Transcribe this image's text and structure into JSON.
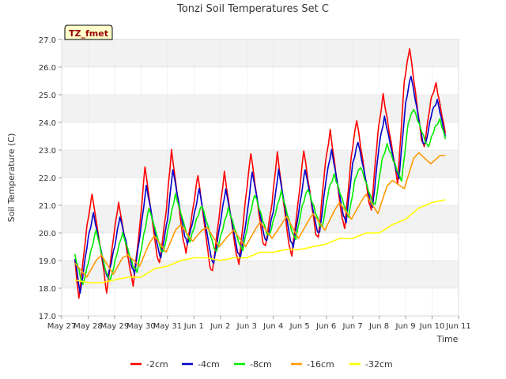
{
  "chart_data": {
    "type": "line",
    "title": "Tonzi Soil Temperatures Set C",
    "xlabel": "Time",
    "ylabel": "Soil Temperature (C)",
    "badge": "TZ_fmet",
    "xlim": [
      0,
      15
    ],
    "ylim": [
      17.0,
      27.0
    ],
    "x_ticks": [
      {
        "pos": 0,
        "label": "May 27"
      },
      {
        "pos": 1,
        "label": "May 28"
      },
      {
        "pos": 2,
        "label": "May 29"
      },
      {
        "pos": 3,
        "label": "May 30"
      },
      {
        "pos": 4,
        "label": "May 31"
      },
      {
        "pos": 5,
        "label": "Jun 1"
      },
      {
        "pos": 6,
        "label": "Jun 2"
      },
      {
        "pos": 7,
        "label": "Jun 3"
      },
      {
        "pos": 8,
        "label": "Jun 4"
      },
      {
        "pos": 9,
        "label": "Jun 5"
      },
      {
        "pos": 10,
        "label": "Jun 6"
      },
      {
        "pos": 11,
        "label": "Jun 7"
      },
      {
        "pos": 12,
        "label": "Jun 8"
      },
      {
        "pos": 13,
        "label": "Jun 9"
      },
      {
        "pos": 14,
        "label": "Jun 10"
      },
      {
        "pos": 15,
        "label": "Jun 11"
      }
    ],
    "y_ticks": [
      "17.0",
      "18.0",
      "19.0",
      "20.0",
      "21.0",
      "22.0",
      "23.0",
      "24.0",
      "25.0",
      "26.0",
      "27.0"
    ],
    "legend_position": "bottom-center",
    "x_units": "days since May 27 00:00",
    "series": [
      {
        "name": "-2cm",
        "color": "#ff0000",
        "points": [
          [
            0.5,
            19.0
          ],
          [
            0.65,
            17.6
          ],
          [
            0.95,
            20.2
          ],
          [
            1.15,
            21.4
          ],
          [
            1.6,
            18.6
          ],
          [
            1.7,
            17.8
          ],
          [
            1.95,
            19.8
          ],
          [
            2.15,
            21.1
          ],
          [
            2.6,
            18.6
          ],
          [
            2.7,
            18.1
          ],
          [
            2.95,
            20.2
          ],
          [
            3.15,
            22.4
          ],
          [
            3.6,
            19.2
          ],
          [
            3.7,
            18.9
          ],
          [
            3.95,
            20.8
          ],
          [
            4.15,
            23.0
          ],
          [
            4.6,
            19.7
          ],
          [
            4.7,
            19.3
          ],
          [
            4.95,
            20.8
          ],
          [
            5.15,
            22.1
          ],
          [
            5.6,
            18.8
          ],
          [
            5.7,
            18.6
          ],
          [
            5.95,
            20.6
          ],
          [
            6.15,
            22.2
          ],
          [
            6.6,
            19.2
          ],
          [
            6.7,
            18.9
          ],
          [
            6.95,
            21.2
          ],
          [
            7.15,
            22.9
          ],
          [
            7.6,
            19.7
          ],
          [
            7.7,
            19.5
          ],
          [
            7.95,
            21.1
          ],
          [
            8.15,
            22.9
          ],
          [
            8.6,
            19.5
          ],
          [
            8.7,
            19.2
          ],
          [
            8.95,
            21.2
          ],
          [
            9.15,
            23.0
          ],
          [
            9.6,
            20.0
          ],
          [
            9.7,
            19.8
          ],
          [
            9.95,
            22.4
          ],
          [
            10.15,
            23.7
          ],
          [
            10.6,
            20.5
          ],
          [
            10.7,
            20.2
          ],
          [
            10.95,
            22.8
          ],
          [
            11.15,
            24.1
          ],
          [
            11.6,
            21.2
          ],
          [
            11.7,
            20.8
          ],
          [
            11.95,
            23.6
          ],
          [
            12.15,
            25.0
          ],
          [
            12.6,
            22.4
          ],
          [
            12.7,
            21.8
          ],
          [
            12.95,
            25.5
          ],
          [
            13.15,
            26.7
          ],
          [
            13.6,
            23.4
          ],
          [
            13.7,
            23.1
          ],
          [
            13.95,
            24.8
          ],
          [
            14.15,
            25.4
          ],
          [
            14.5,
            23.6
          ]
        ]
      },
      {
        "name": "-4cm",
        "color": "#0000cc",
        "points": [
          [
            0.5,
            19.1
          ],
          [
            0.7,
            17.8
          ],
          [
            1.0,
            19.8
          ],
          [
            1.2,
            20.7
          ],
          [
            1.65,
            18.6
          ],
          [
            1.75,
            18.4
          ],
          [
            2.0,
            19.5
          ],
          [
            2.2,
            20.6
          ],
          [
            2.65,
            18.8
          ],
          [
            2.75,
            18.5
          ],
          [
            3.0,
            20.2
          ],
          [
            3.2,
            21.7
          ],
          [
            3.65,
            19.4
          ],
          [
            3.75,
            19.1
          ],
          [
            4.0,
            20.5
          ],
          [
            4.2,
            22.3
          ],
          [
            4.65,
            19.9
          ],
          [
            4.75,
            19.6
          ],
          [
            5.0,
            20.6
          ],
          [
            5.2,
            21.6
          ],
          [
            5.65,
            19.1
          ],
          [
            5.75,
            18.9
          ],
          [
            6.0,
            20.4
          ],
          [
            6.2,
            21.6
          ],
          [
            6.65,
            19.3
          ],
          [
            6.75,
            19.1
          ],
          [
            7.0,
            20.6
          ],
          [
            7.2,
            22.2
          ],
          [
            7.65,
            19.9
          ],
          [
            7.75,
            19.7
          ],
          [
            8.0,
            20.8
          ],
          [
            8.2,
            22.3
          ],
          [
            8.65,
            19.7
          ],
          [
            8.75,
            19.5
          ],
          [
            9.0,
            21.0
          ],
          [
            9.2,
            22.3
          ],
          [
            9.65,
            20.1
          ],
          [
            9.75,
            20.0
          ],
          [
            10.0,
            22.0
          ],
          [
            10.2,
            23.0
          ],
          [
            10.65,
            20.6
          ],
          [
            10.75,
            20.4
          ],
          [
            11.0,
            22.5
          ],
          [
            11.2,
            23.3
          ],
          [
            11.65,
            21.2
          ],
          [
            11.75,
            20.9
          ],
          [
            12.0,
            23.2
          ],
          [
            12.2,
            24.2
          ],
          [
            12.65,
            22.2
          ],
          [
            12.75,
            22.0
          ],
          [
            13.0,
            24.7
          ],
          [
            13.2,
            25.7
          ],
          [
            13.65,
            23.3
          ],
          [
            13.75,
            23.2
          ],
          [
            14.0,
            24.4
          ],
          [
            14.2,
            24.8
          ],
          [
            14.5,
            23.5
          ]
        ]
      },
      {
        "name": "-8cm",
        "color": "#00ee00",
        "points": [
          [
            0.5,
            19.2
          ],
          [
            0.8,
            18.1
          ],
          [
            1.1,
            19.3
          ],
          [
            1.3,
            20.1
          ],
          [
            1.7,
            18.5
          ],
          [
            1.85,
            18.3
          ],
          [
            2.1,
            19.3
          ],
          [
            2.3,
            20.0
          ],
          [
            2.7,
            18.8
          ],
          [
            2.85,
            18.6
          ],
          [
            3.1,
            19.9
          ],
          [
            3.3,
            20.9
          ],
          [
            3.75,
            19.4
          ],
          [
            3.85,
            19.3
          ],
          [
            4.1,
            20.5
          ],
          [
            4.3,
            21.4
          ],
          [
            4.75,
            19.9
          ],
          [
            4.85,
            19.7
          ],
          [
            5.1,
            20.5
          ],
          [
            5.3,
            21.0
          ],
          [
            5.75,
            19.5
          ],
          [
            5.85,
            19.3
          ],
          [
            6.1,
            20.2
          ],
          [
            6.3,
            20.9
          ],
          [
            6.75,
            19.5
          ],
          [
            6.85,
            19.4
          ],
          [
            7.1,
            20.6
          ],
          [
            7.3,
            21.4
          ],
          [
            7.75,
            20.0
          ],
          [
            7.85,
            19.9
          ],
          [
            8.1,
            20.8
          ],
          [
            8.3,
            21.5
          ],
          [
            8.75,
            19.9
          ],
          [
            8.85,
            19.8
          ],
          [
            9.1,
            21.0
          ],
          [
            9.3,
            21.6
          ],
          [
            9.75,
            20.3
          ],
          [
            9.85,
            20.2
          ],
          [
            10.1,
            21.6
          ],
          [
            10.3,
            22.1
          ],
          [
            10.75,
            20.8
          ],
          [
            10.85,
            20.6
          ],
          [
            11.1,
            22.0
          ],
          [
            11.3,
            22.4
          ],
          [
            11.75,
            21.1
          ],
          [
            11.85,
            21.0
          ],
          [
            12.1,
            22.6
          ],
          [
            12.3,
            23.2
          ],
          [
            12.75,
            22.1
          ],
          [
            12.85,
            21.9
          ],
          [
            13.1,
            24.0
          ],
          [
            13.3,
            24.5
          ],
          [
            13.75,
            23.3
          ],
          [
            13.85,
            23.1
          ],
          [
            14.1,
            23.8
          ],
          [
            14.3,
            24.1
          ],
          [
            14.5,
            23.4
          ]
        ]
      },
      {
        "name": "-16cm",
        "color": "#ff9900",
        "points": [
          [
            0.5,
            18.9
          ],
          [
            0.95,
            18.4
          ],
          [
            1.3,
            19.0
          ],
          [
            1.5,
            19.2
          ],
          [
            1.95,
            18.5
          ],
          [
            2.3,
            19.1
          ],
          [
            2.5,
            19.2
          ],
          [
            2.95,
            18.8
          ],
          [
            3.3,
            19.6
          ],
          [
            3.5,
            19.9
          ],
          [
            3.95,
            19.3
          ],
          [
            4.3,
            20.1
          ],
          [
            4.5,
            20.3
          ],
          [
            4.95,
            19.7
          ],
          [
            5.3,
            20.1
          ],
          [
            5.5,
            20.2
          ],
          [
            5.95,
            19.5
          ],
          [
            6.3,
            19.9
          ],
          [
            6.5,
            20.1
          ],
          [
            6.95,
            19.5
          ],
          [
            7.3,
            20.1
          ],
          [
            7.5,
            20.4
          ],
          [
            7.95,
            19.8
          ],
          [
            8.3,
            20.3
          ],
          [
            8.5,
            20.6
          ],
          [
            8.95,
            19.8
          ],
          [
            9.3,
            20.4
          ],
          [
            9.5,
            20.7
          ],
          [
            9.95,
            20.1
          ],
          [
            10.3,
            20.8
          ],
          [
            10.5,
            21.1
          ],
          [
            10.95,
            20.5
          ],
          [
            11.3,
            21.1
          ],
          [
            11.5,
            21.4
          ],
          [
            11.95,
            20.7
          ],
          [
            12.3,
            21.7
          ],
          [
            12.5,
            21.9
          ],
          [
            12.95,
            21.6
          ],
          [
            13.3,
            22.7
          ],
          [
            13.5,
            22.9
          ],
          [
            13.95,
            22.5
          ],
          [
            14.3,
            22.8
          ],
          [
            14.5,
            22.8
          ]
        ]
      },
      {
        "name": "-32cm",
        "color": "#ffff00",
        "points": [
          [
            0.5,
            18.3
          ],
          [
            1.0,
            18.2
          ],
          [
            1.5,
            18.2
          ],
          [
            2.0,
            18.3
          ],
          [
            2.5,
            18.4
          ],
          [
            3.0,
            18.4
          ],
          [
            3.5,
            18.7
          ],
          [
            4.0,
            18.8
          ],
          [
            4.5,
            19.0
          ],
          [
            5.0,
            19.1
          ],
          [
            5.5,
            19.1
          ],
          [
            6.0,
            19.0
          ],
          [
            6.5,
            19.1
          ],
          [
            7.0,
            19.1
          ],
          [
            7.5,
            19.3
          ],
          [
            8.0,
            19.3
          ],
          [
            8.5,
            19.4
          ],
          [
            9.0,
            19.4
          ],
          [
            9.5,
            19.5
          ],
          [
            10.0,
            19.6
          ],
          [
            10.5,
            19.8
          ],
          [
            11.0,
            19.8
          ],
          [
            11.5,
            20.0
          ],
          [
            12.0,
            20.0
          ],
          [
            12.5,
            20.3
          ],
          [
            13.0,
            20.5
          ],
          [
            13.5,
            20.9
          ],
          [
            14.0,
            21.1
          ],
          [
            14.5,
            21.2
          ]
        ]
      }
    ]
  }
}
